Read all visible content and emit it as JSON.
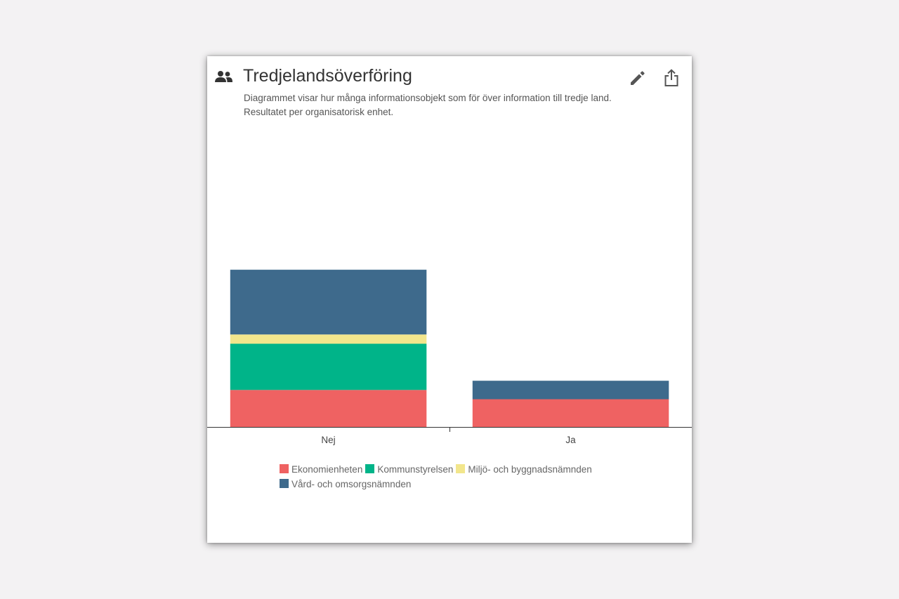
{
  "card": {
    "title": "Tredjelandsöverföring",
    "description": "Diagrammet visar hur många informationsobjekt som för över information till tredje land. Resultatet per organisatorisk enhet.",
    "header_icon": "people-icon",
    "edit_icon": "pencil-icon",
    "share_icon": "share-icon"
  },
  "chart_data": {
    "type": "bar",
    "stacked": true,
    "categories": [
      "Nej",
      "Ja"
    ],
    "series": [
      {
        "name": "Ekonomienheten",
        "color": "#ef6262",
        "values": [
          8,
          6
        ]
      },
      {
        "name": "Kommunstyrelsen",
        "color": "#00b489",
        "values": [
          10,
          0
        ]
      },
      {
        "name": "Miljö- och byggnadsnämnden",
        "color": "#f2e68c",
        "values": [
          2,
          0
        ]
      },
      {
        "name": "Vård- och omsorgsnämnden",
        "color": "#3e6a8c",
        "values": [
          14,
          4
        ]
      }
    ],
    "ylim": [
      0,
      65
    ],
    "grid": false,
    "legend": "bottom"
  }
}
